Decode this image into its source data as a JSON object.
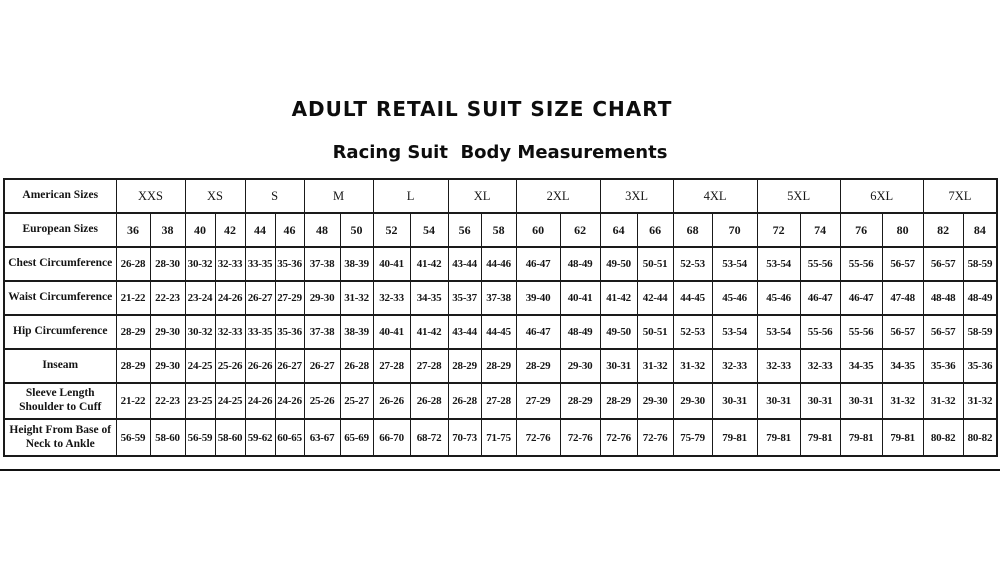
{
  "header": {
    "title": "ADULT RETAIL SUIT SIZE CHART",
    "subtitle": "Racing Suit  Body Measurements"
  },
  "table": {
    "american_sizes_label": "American Sizes",
    "european_sizes_label": "European Sizes",
    "american_sizes": [
      "XXS",
      "XS",
      "S",
      "M",
      "L",
      "XL",
      "2XL",
      "3XL",
      "4XL",
      "5XL",
      "6XL",
      "7XL"
    ],
    "european_sizes": [
      "36",
      "38",
      "40",
      "42",
      "44",
      "46",
      "48",
      "50",
      "52",
      "54",
      "56",
      "58",
      "60",
      "62",
      "64",
      "66",
      "68",
      "70",
      "72",
      "74",
      "76",
      "80",
      "82",
      "84"
    ],
    "measurement_rows": [
      {
        "label": "Chest Circumference",
        "values": [
          "26-28",
          "28-30",
          "30-32",
          "32-33",
          "33-35",
          "35-36",
          "37-38",
          "38-39",
          "40-41",
          "41-42",
          "43-44",
          "44-46",
          "46-47",
          "48-49",
          "49-50",
          "50-51",
          "52-53",
          "53-54",
          "53-54",
          "55-56",
          "55-56",
          "56-57",
          "56-57",
          "58-59"
        ]
      },
      {
        "label": "Waist Circumference",
        "values": [
          "21-22",
          "22-23",
          "23-24",
          "24-26",
          "26-27",
          "27-29",
          "29-30",
          "31-32",
          "32-33",
          "34-35",
          "35-37",
          "37-38",
          "39-40",
          "40-41",
          "41-42",
          "42-44",
          "44-45",
          "45-46",
          "45-46",
          "46-47",
          "46-47",
          "47-48",
          "48-48",
          "48-49"
        ]
      },
      {
        "label": "Hip Circumference",
        "values": [
          "28-29",
          "29-30",
          "30-32",
          "32-33",
          "33-35",
          "35-36",
          "37-38",
          "38-39",
          "40-41",
          "41-42",
          "43-44",
          "44-45",
          "46-47",
          "48-49",
          "49-50",
          "50-51",
          "52-53",
          "53-54",
          "53-54",
          "55-56",
          "55-56",
          "56-57",
          "56-57",
          "58-59"
        ]
      },
      {
        "label": "Inseam",
        "values": [
          "28-29",
          "29-30",
          "24-25",
          "25-26",
          "26-26",
          "26-27",
          "26-27",
          "26-28",
          "27-28",
          "27-28",
          "28-29",
          "28-29",
          "28-29",
          "29-30",
          "30-31",
          "31-32",
          "31-32",
          "32-33",
          "32-33",
          "32-33",
          "34-35",
          "34-35",
          "35-36",
          "35-36"
        ]
      },
      {
        "label": "Sleeve Length Shoulder to Cuff",
        "values": [
          "21-22",
          "22-23",
          "23-25",
          "24-25",
          "24-26",
          "24-26",
          "25-26",
          "25-27",
          "26-26",
          "26-28",
          "26-28",
          "27-28",
          "27-29",
          "28-29",
          "28-29",
          "29-30",
          "29-30",
          "30-31",
          "30-31",
          "30-31",
          "30-31",
          "31-32",
          "31-32",
          "31-32"
        ]
      },
      {
        "label": "Height From Base of Neck to Ankle",
        "values": [
          "56-59",
          "58-60",
          "56-59",
          "58-60",
          "59-62",
          "60-65",
          "63-67",
          "65-69",
          "66-70",
          "68-72",
          "70-73",
          "71-75",
          "72-76",
          "72-76",
          "72-76",
          "72-76",
          "75-79",
          "79-81",
          "79-81",
          "79-81",
          "79-81",
          "79-81",
          "80-82",
          "80-82"
        ]
      }
    ]
  },
  "colors": {
    "text": "#161616",
    "border": "#1a1a1a",
    "background": "#ffffff"
  }
}
